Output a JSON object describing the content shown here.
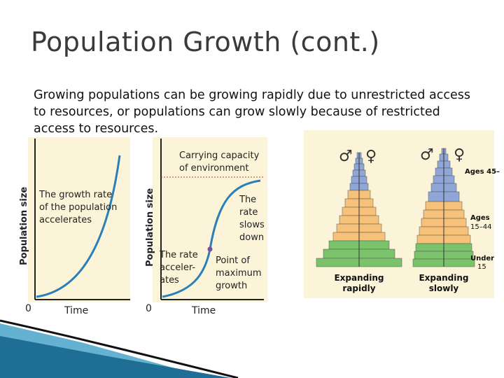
{
  "title": "Population Growth (cont.)",
  "body": "Growing populations can be growing rapidly due to unrestricted access to resources, or  populations can grow slowly because of restricted access to resources.",
  "exp_graph": {
    "ylabel": "Population size",
    "xlabel": "Time",
    "zero": "0",
    "annotation": [
      "The growth rate",
      "of the population",
      "accelerates"
    ]
  },
  "log_graph": {
    "ylabel": "Population size",
    "xlabel": "Time",
    "zero": "0",
    "carrying": [
      "Carrying capacity",
      "of environment"
    ],
    "slows": [
      "The",
      "rate",
      "slows",
      "down"
    ],
    "accel": [
      "The rate",
      "acceler-",
      "ates"
    ],
    "point": [
      "Point of",
      "maximum",
      "growth"
    ]
  },
  "pyramids": {
    "male_symbol": "♂",
    "female_symbol": "♀",
    "label_old": "Ages 45–",
    "label_mid": [
      "Ages",
      "15–44"
    ],
    "label_young": [
      "Under",
      "15"
    ],
    "left_caption": [
      "Expanding",
      "rapidly"
    ],
    "right_caption": [
      "Expanding",
      "slowly"
    ]
  },
  "colors": {
    "curve": "#2a7fb8",
    "old": "#8fa6d6",
    "mid": "#f6c27a",
    "young": "#7ac36a",
    "panel": "#fbf4d8",
    "title": "#3a3a3a"
  }
}
